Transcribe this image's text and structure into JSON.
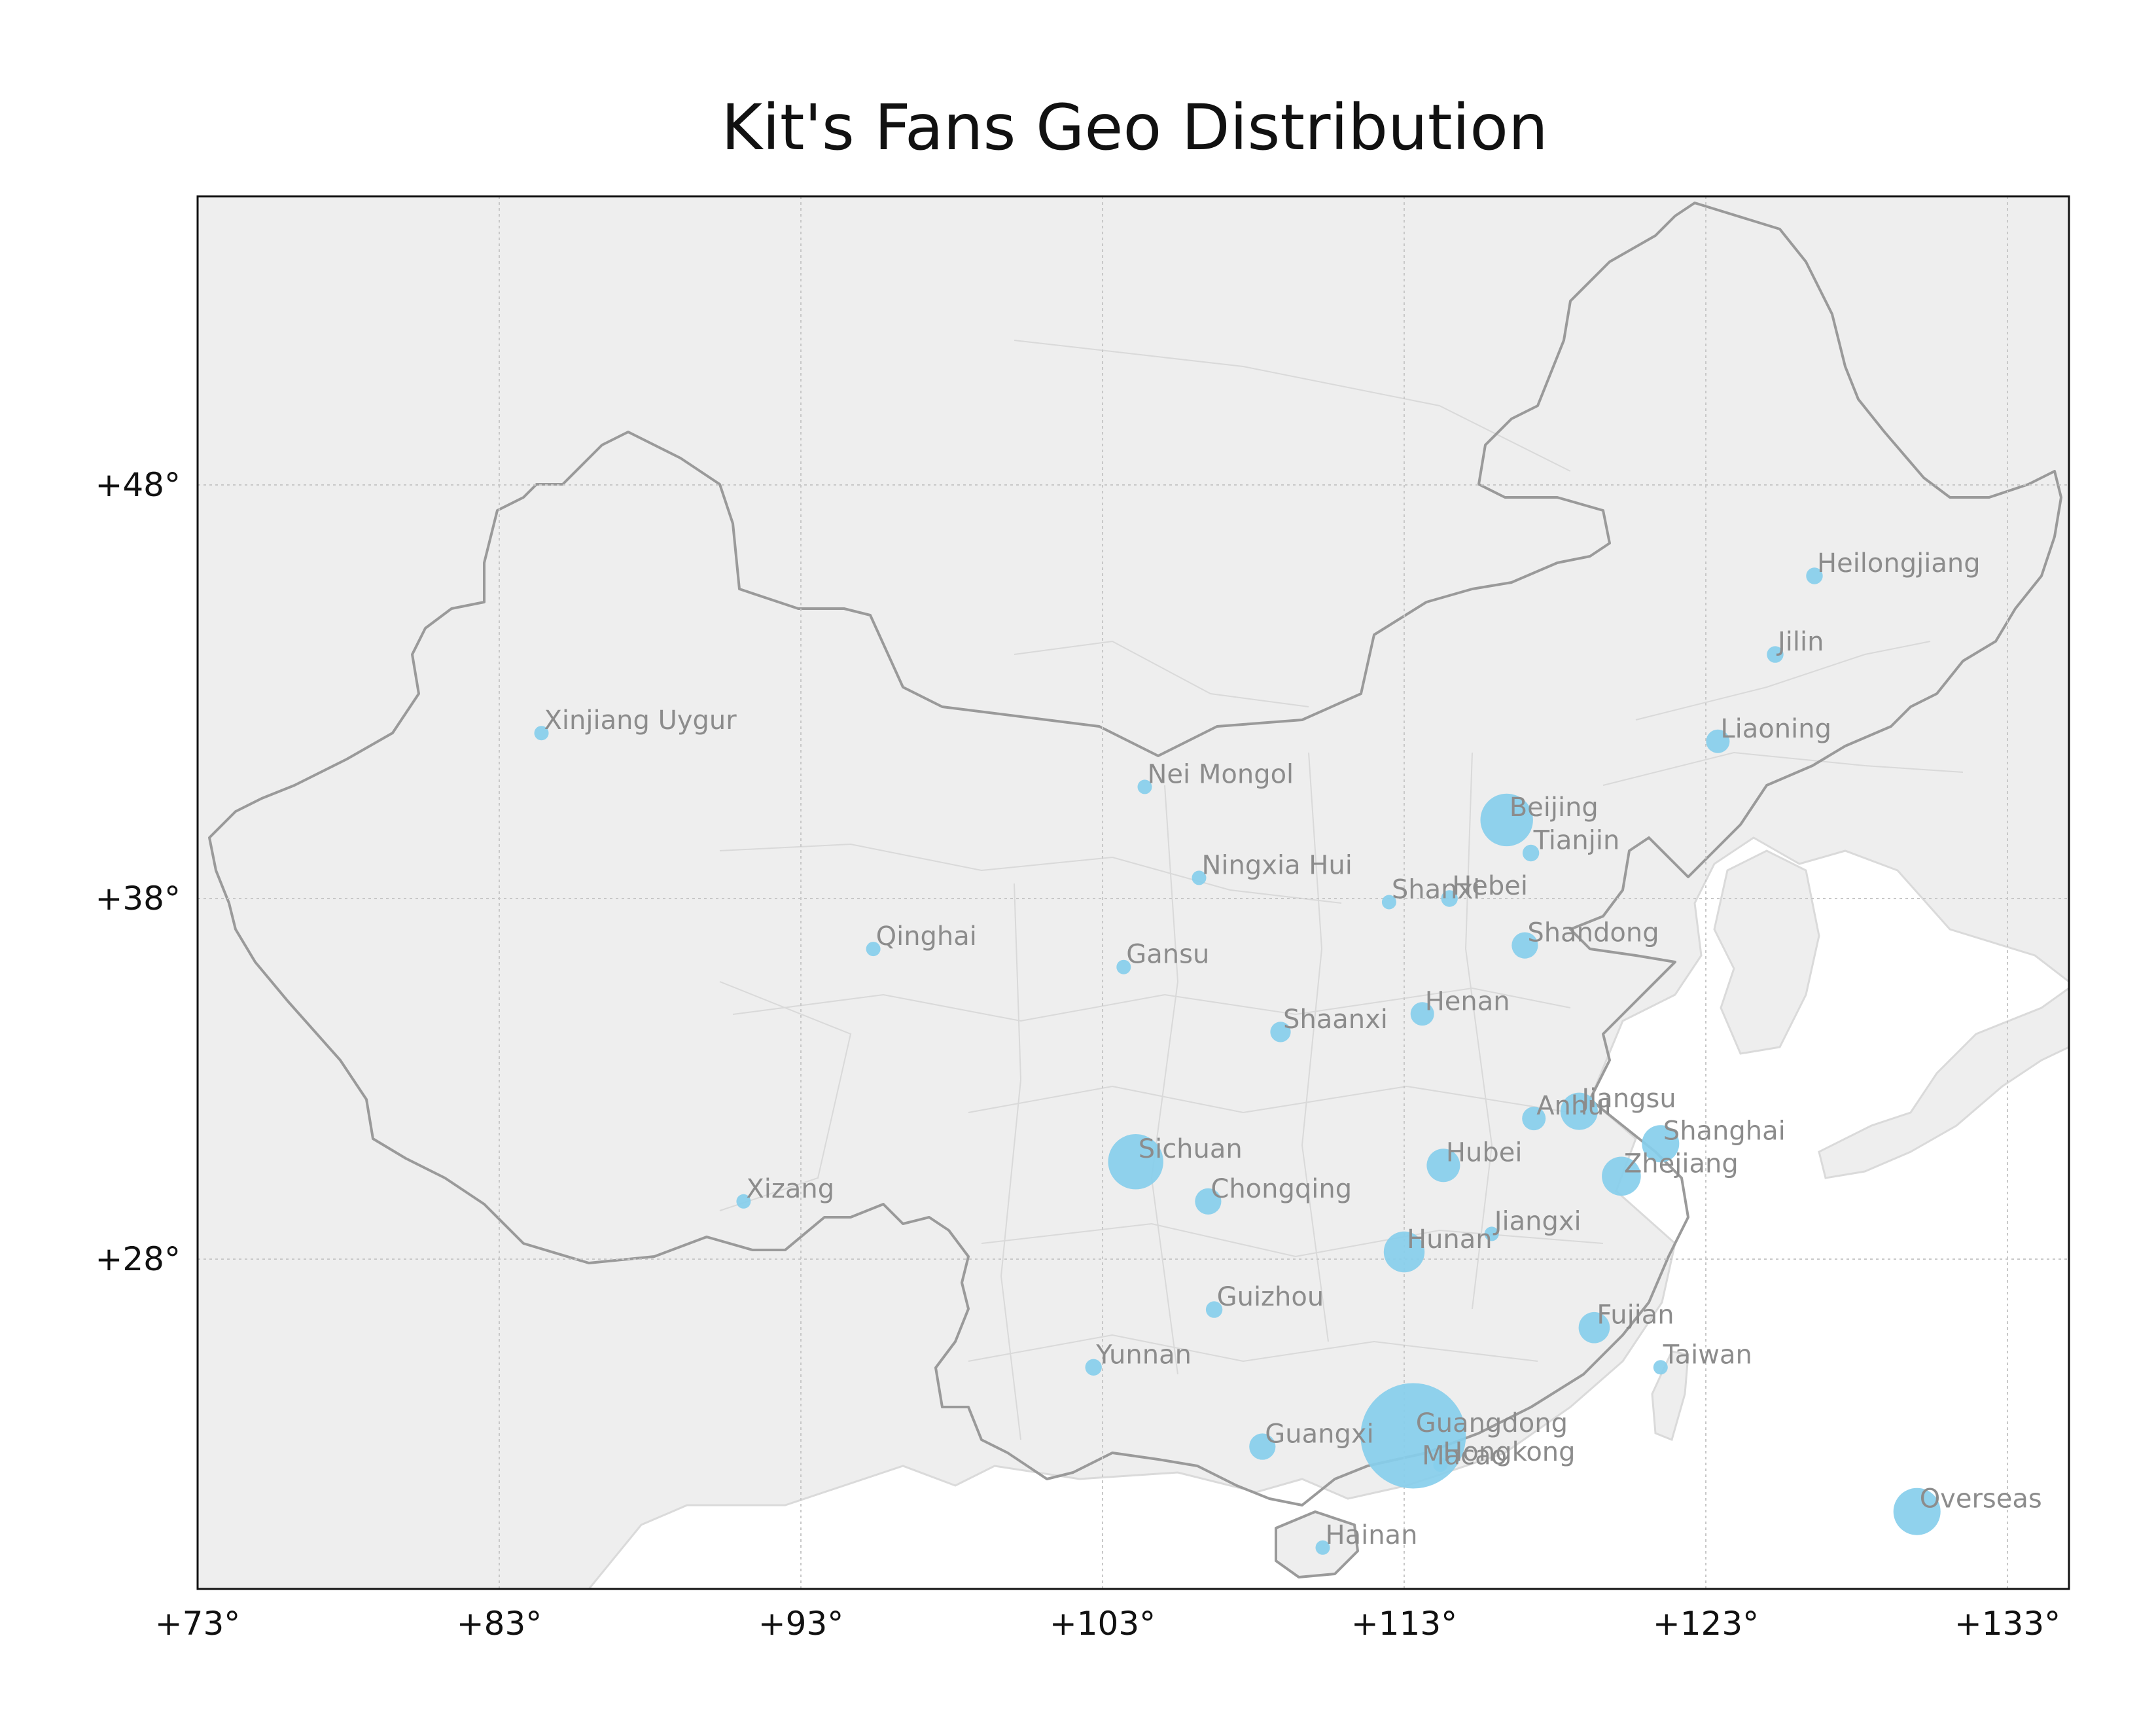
{
  "title": "Kit's Fans Geo Distribution",
  "chart_data": {
    "type": "scatter",
    "title": "Kit's Fans Geo Distribution",
    "x_label": "",
    "y_label": "",
    "x_range": [
      73,
      135
    ],
    "y_range": [
      18.5,
      55.5
    ],
    "x_ticks": [
      "+73°",
      "+83°",
      "+93°",
      "+103°",
      "+113°",
      "+123°",
      "+133°"
    ],
    "y_ticks": [
      "+28°",
      "+38°",
      "+48°"
    ],
    "grid": true,
    "marker_color": "#87ceeb",
    "points": [
      {
        "name": "Heilongjiang",
        "lon": 126.6,
        "lat": 45.8,
        "size": 2
      },
      {
        "name": "Jilin",
        "lon": 125.3,
        "lat": 43.9,
        "size": 2
      },
      {
        "name": "Liaoning",
        "lon": 123.4,
        "lat": 41.8,
        "size": 4
      },
      {
        "name": "Xinjiang Uygur",
        "lon": 84.4,
        "lat": 42.0,
        "size": 1
      },
      {
        "name": "Nei Mongol",
        "lon": 104.4,
        "lat": 40.7,
        "size": 1
      },
      {
        "name": "Beijing",
        "lon": 116.4,
        "lat": 39.9,
        "size": 20
      },
      {
        "name": "Tianjin",
        "lon": 117.2,
        "lat": 39.1,
        "size": 2
      },
      {
        "name": "Hebei",
        "lon": 114.5,
        "lat": 38.0,
        "size": 2
      },
      {
        "name": "Shanxi",
        "lon": 112.5,
        "lat": 37.9,
        "size": 1
      },
      {
        "name": "Ningxia Hui",
        "lon": 106.2,
        "lat": 38.5,
        "size": 0.5
      },
      {
        "name": "Qinghai",
        "lon": 95.4,
        "lat": 36.6,
        "size": 1
      },
      {
        "name": "Gansu",
        "lon": 103.7,
        "lat": 36.1,
        "size": 1
      },
      {
        "name": "Shandong",
        "lon": 117.0,
        "lat": 36.7,
        "size": 5
      },
      {
        "name": "Shaanxi",
        "lon": 108.9,
        "lat": 34.3,
        "size": 3
      },
      {
        "name": "Henan",
        "lon": 113.6,
        "lat": 34.8,
        "size": 4
      },
      {
        "name": "Jiangsu",
        "lon": 118.8,
        "lat": 32.1,
        "size": 10
      },
      {
        "name": "Xizang",
        "lon": 91.1,
        "lat": 29.6,
        "size": 1
      },
      {
        "name": "Anhui",
        "lon": 117.3,
        "lat": 31.9,
        "size": 4
      },
      {
        "name": "Shanghai",
        "lon": 121.5,
        "lat": 31.2,
        "size": 10
      },
      {
        "name": "Sichuan",
        "lon": 104.1,
        "lat": 30.7,
        "size": 22
      },
      {
        "name": "Hubei",
        "lon": 114.3,
        "lat": 30.6,
        "size": 8
      },
      {
        "name": "Chongqing",
        "lon": 106.5,
        "lat": 29.6,
        "size": 5
      },
      {
        "name": "Zhejiang",
        "lon": 120.2,
        "lat": 30.3,
        "size": 11
      },
      {
        "name": "Hunan",
        "lon": 113.0,
        "lat": 28.2,
        "size": 12
      },
      {
        "name": "Jiangxi",
        "lon": 115.9,
        "lat": 28.7,
        "size": 1
      },
      {
        "name": "Guizhou",
        "lon": 106.7,
        "lat": 26.6,
        "size": 2
      },
      {
        "name": "Fujian",
        "lon": 119.3,
        "lat": 26.1,
        "size": 7
      },
      {
        "name": "Yunnan",
        "lon": 102.7,
        "lat": 25.0,
        "size": 2
      },
      {
        "name": "Guangxi",
        "lon": 108.3,
        "lat": 22.8,
        "size": 5
      },
      {
        "name": "Guangdong",
        "lon": 113.3,
        "lat": 23.1,
        "size": 80
      },
      {
        "name": "Macao",
        "lon": 113.5,
        "lat": 22.2,
        "size": 0
      },
      {
        "name": "Hongkong",
        "lon": 114.2,
        "lat": 22.3,
        "size": 1
      },
      {
        "name": "Taiwan",
        "lon": 121.5,
        "lat": 25.0,
        "size": 1
      },
      {
        "name": "Hainan",
        "lon": 110.3,
        "lat": 20.0,
        "size": 1
      },
      {
        "name": "Overseas",
        "lon": 130.0,
        "lat": 21.0,
        "size": 16
      }
    ]
  }
}
